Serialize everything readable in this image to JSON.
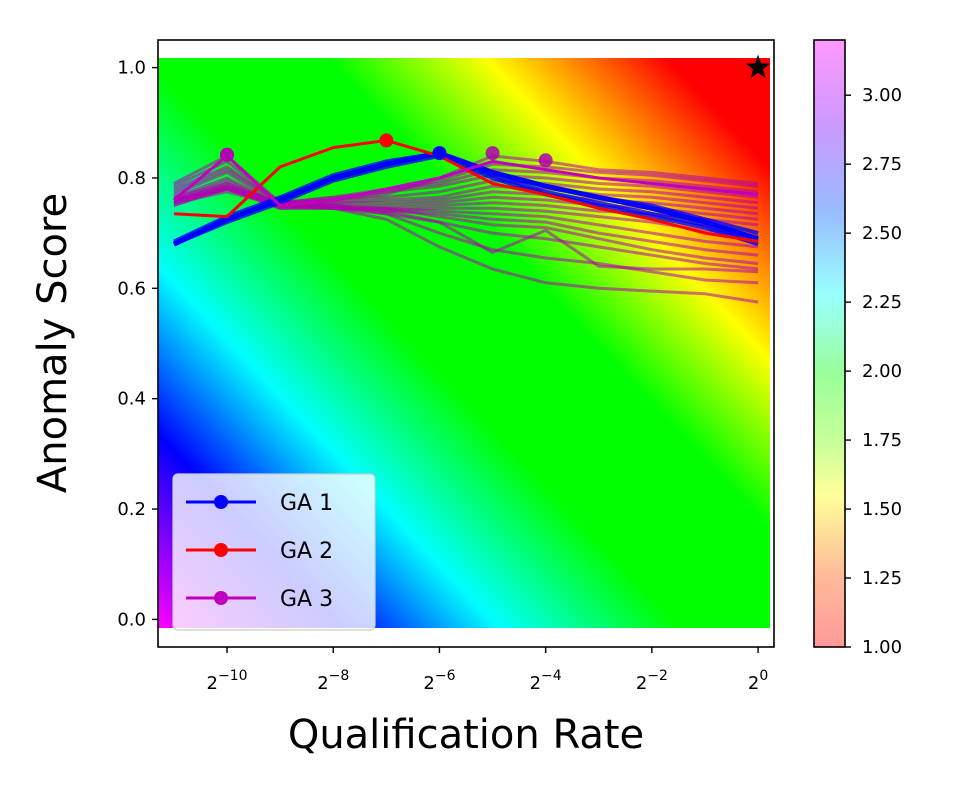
{
  "chart_data": {
    "type": "line",
    "title": "",
    "xlabel": "Qualification Rate",
    "ylabel": "Anomaly Score",
    "x_scale": "log2",
    "xlim_log2": [
      -11.3,
      0.3
    ],
    "ylim": [
      -0.05,
      1.05
    ],
    "x_ticks_log2": [
      -10,
      -8,
      -6,
      -4,
      -2,
      0
    ],
    "x_tick_base": "2",
    "x_tick_exponents": [
      "−10",
      "−8",
      "−6",
      "−4",
      "−2",
      "0"
    ],
    "y_ticks": [
      "0.0",
      "0.2",
      "0.4",
      "0.6",
      "0.8",
      "1.0"
    ],
    "y_tick_values": [
      0.0,
      0.2,
      0.4,
      0.6,
      0.8,
      1.0
    ],
    "x_log2": [
      -11,
      -10,
      -9,
      -8,
      -7,
      -6,
      -5,
      -4,
      -3,
      -2,
      -1,
      0
    ],
    "series": [
      {
        "name": "GA 1",
        "color": "#0000ff",
        "values": [
          0.68,
          0.725,
          0.76,
          0.8,
          0.825,
          0.845,
          0.81,
          0.785,
          0.765,
          0.745,
          0.72,
          0.69
        ],
        "marker_x_log2": -6,
        "marker_y": 0.845
      },
      {
        "name": "GA 2",
        "color": "#ff0000",
        "values": [
          0.735,
          0.73,
          0.82,
          0.855,
          0.868,
          0.84,
          0.79,
          0.77,
          0.745,
          0.725,
          0.7,
          0.685
        ],
        "marker_x_log2": -7,
        "marker_y": 0.868
      },
      {
        "name": "GA 3",
        "color": "#bf00bf",
        "values": [
          0.76,
          0.84,
          0.75,
          0.76,
          0.78,
          0.8,
          0.83,
          0.815,
          0.8,
          0.79,
          0.78,
          0.77
        ],
        "marker_x_log2": -10,
        "marker_y": 0.842
      }
    ],
    "ga1_band": [
      [
        0.68,
        0.725,
        0.76,
        0.8,
        0.825,
        0.845,
        0.805,
        0.775,
        0.755,
        0.735,
        0.715,
        0.685
      ],
      [
        0.685,
        0.73,
        0.765,
        0.805,
        0.83,
        0.845,
        0.81,
        0.785,
        0.765,
        0.75,
        0.725,
        0.7
      ],
      [
        0.68,
        0.72,
        0.755,
        0.795,
        0.82,
        0.84,
        0.8,
        0.77,
        0.75,
        0.73,
        0.71,
        0.68
      ]
    ],
    "ga3_bundle": [
      [
        0.79,
        0.84,
        0.755,
        0.76,
        0.77,
        0.8,
        0.84,
        0.83,
        0.815,
        0.81,
        0.8,
        0.79
      ],
      [
        0.785,
        0.83,
        0.755,
        0.765,
        0.775,
        0.795,
        0.825,
        0.82,
        0.81,
        0.805,
        0.795,
        0.785
      ],
      [
        0.78,
        0.82,
        0.755,
        0.765,
        0.78,
        0.79,
        0.815,
        0.81,
        0.8,
        0.795,
        0.785,
        0.775
      ],
      [
        0.775,
        0.815,
        0.755,
        0.76,
        0.775,
        0.785,
        0.805,
        0.8,
        0.79,
        0.785,
        0.775,
        0.765
      ],
      [
        0.77,
        0.81,
        0.75,
        0.76,
        0.765,
        0.775,
        0.795,
        0.79,
        0.78,
        0.775,
        0.765,
        0.755
      ],
      [
        0.765,
        0.8,
        0.75,
        0.755,
        0.76,
        0.765,
        0.785,
        0.78,
        0.77,
        0.765,
        0.755,
        0.745
      ],
      [
        0.76,
        0.795,
        0.75,
        0.755,
        0.755,
        0.76,
        0.775,
        0.77,
        0.76,
        0.755,
        0.745,
        0.735
      ],
      [
        0.755,
        0.79,
        0.745,
        0.75,
        0.75,
        0.755,
        0.765,
        0.76,
        0.75,
        0.745,
        0.735,
        0.725
      ],
      [
        0.75,
        0.785,
        0.745,
        0.745,
        0.745,
        0.75,
        0.755,
        0.75,
        0.74,
        0.735,
        0.725,
        0.715
      ],
      [
        0.75,
        0.78,
        0.745,
        0.745,
        0.74,
        0.745,
        0.745,
        0.74,
        0.73,
        0.72,
        0.705,
        0.695
      ],
      [
        0.755,
        0.78,
        0.75,
        0.745,
        0.745,
        0.74,
        0.735,
        0.73,
        0.715,
        0.7,
        0.685,
        0.675
      ],
      [
        0.755,
        0.775,
        0.75,
        0.745,
        0.74,
        0.735,
        0.725,
        0.72,
        0.7,
        0.685,
        0.67,
        0.66
      ],
      [
        0.76,
        0.78,
        0.755,
        0.75,
        0.745,
        0.73,
        0.715,
        0.71,
        0.69,
        0.67,
        0.655,
        0.645
      ],
      [
        0.76,
        0.785,
        0.755,
        0.75,
        0.74,
        0.72,
        0.7,
        0.69,
        0.675,
        0.66,
        0.645,
        0.635
      ],
      [
        0.76,
        0.78,
        0.75,
        0.745,
        0.735,
        0.72,
        0.665,
        0.705,
        0.64,
        0.635,
        0.635,
        0.63
      ],
      [
        0.76,
        0.785,
        0.755,
        0.745,
        0.725,
        0.675,
        0.635,
        0.61,
        0.6,
        0.595,
        0.59,
        0.575
      ],
      [
        0.765,
        0.79,
        0.755,
        0.75,
        0.735,
        0.7,
        0.67,
        0.655,
        0.645,
        0.63,
        0.615,
        0.61
      ]
    ],
    "ga3_markers": [
      {
        "x_log2": -10,
        "y": 0.842
      },
      {
        "x_log2": -5,
        "y": 0.845
      },
      {
        "x_log2": -4,
        "y": 0.832
      }
    ],
    "star": {
      "x_log2": 0,
      "y": 1.0
    },
    "background": "rainbow gradient rising toward upper-right",
    "colorbar": {
      "cmap": "gist_rainbow",
      "min": 1.0,
      "max": 3.2,
      "ticks": [
        "1.00",
        "1.25",
        "1.50",
        "1.75",
        "2.00",
        "2.25",
        "2.50",
        "2.75",
        "3.00"
      ],
      "tick_values": [
        1.0,
        1.25,
        1.5,
        1.75,
        2.0,
        2.25,
        2.5,
        2.75,
        3.0
      ]
    },
    "legend_position": "lower-left"
  }
}
